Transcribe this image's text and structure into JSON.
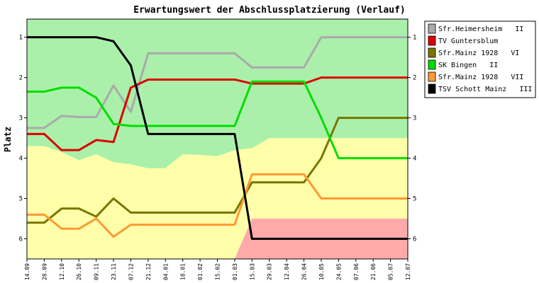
{
  "chart_data": {
    "type": "line",
    "title": "Erwartungswert der Abschlussplatzierung (Verlauf)",
    "ylabel": "Platz",
    "xlabel": "",
    "y_ticks": [
      "1",
      "2",
      "3",
      "4",
      "5",
      "6"
    ],
    "ylim": [
      0.55,
      6.5
    ],
    "y_inverted": true,
    "categories": [
      "14.09",
      "28.09",
      "12.10",
      "26.10",
      "09.11",
      "23.11",
      "07.12",
      "21.12",
      "04.01",
      "18.01",
      "01.02",
      "15.02",
      "01.03",
      "15.03",
      "29.03",
      "12.04",
      "26.04",
      "10.05",
      "24.05",
      "07.06",
      "21.06",
      "05.07",
      "12.07"
    ],
    "legend_position": "right",
    "grid": false,
    "background": {
      "green_lower": [
        3.7,
        3.7,
        3.85,
        4.05,
        3.9,
        4.1,
        4.15,
        4.25,
        4.25,
        3.9,
        3.92,
        3.95,
        3.8,
        3.75,
        3.5,
        3.5,
        3.5,
        3.5,
        3.5,
        3.5,
        3.5,
        3.5,
        3.5
      ],
      "red_upper": [
        6.5,
        6.5,
        6.5,
        6.5,
        6.5,
        6.5,
        6.5,
        6.5,
        6.5,
        6.5,
        6.5,
        6.5,
        6.5,
        5.5,
        5.5,
        5.5,
        5.5,
        5.5,
        5.5,
        5.5,
        5.5,
        5.5,
        5.5
      ],
      "colors": {
        "green": "#aaf0aa",
        "yellow": "#ffffaa",
        "red": "#ffaaaa"
      }
    },
    "series": [
      {
        "name": "Sfr.Heimersheim   II",
        "color": "#aaaaaa",
        "values": [
          3.25,
          3.25,
          2.95,
          2.98,
          2.98,
          2.2,
          2.85,
          1.4,
          1.4,
          1.4,
          1.4,
          1.4,
          1.4,
          1.75,
          1.75,
          1.75,
          1.75,
          1.0,
          1.0,
          1.0,
          1.0,
          1.0,
          1.0
        ]
      },
      {
        "name": "TV Guntersblum",
        "color": "#dd0000",
        "values": [
          3.4,
          3.4,
          3.8,
          3.8,
          3.55,
          3.6,
          2.25,
          2.05,
          2.05,
          2.05,
          2.05,
          2.05,
          2.05,
          2.15,
          2.15,
          2.15,
          2.15,
          2.0,
          2.0,
          2.0,
          2.0,
          2.0,
          2.0
        ]
      },
      {
        "name": "Sfr.Mainz 1928   VI",
        "color": "#777700",
        "values": [
          5.6,
          5.6,
          5.25,
          5.25,
          5.45,
          5.0,
          5.35,
          5.35,
          5.35,
          5.35,
          5.35,
          5.35,
          5.35,
          4.6,
          4.6,
          4.6,
          4.6,
          4.0,
          3.0,
          3.0,
          3.0,
          3.0,
          3.0
        ]
      },
      {
        "name": "SK Bingen   II",
        "color": "#00dd00",
        "values": [
          2.35,
          2.35,
          2.25,
          2.25,
          2.5,
          3.15,
          3.2,
          3.2,
          3.2,
          3.2,
          3.2,
          3.2,
          3.2,
          2.1,
          2.1,
          2.1,
          2.1,
          3.0,
          4.0,
          4.0,
          4.0,
          4.0,
          4.0
        ]
      },
      {
        "name": "Sfr.Mainz 1928   VII",
        "color": "#ff9933",
        "values": [
          5.4,
          5.4,
          5.75,
          5.75,
          5.5,
          5.95,
          5.65,
          5.65,
          5.65,
          5.65,
          5.65,
          5.65,
          5.65,
          4.4,
          4.4,
          4.4,
          4.4,
          5.0,
          5.0,
          5.0,
          5.0,
          5.0,
          5.0
        ]
      },
      {
        "name": "TSV Schott Mainz   III",
        "color": "#000000",
        "values": [
          1.0,
          1.0,
          1.0,
          1.0,
          1.0,
          1.1,
          1.7,
          3.4,
          3.4,
          3.4,
          3.4,
          3.4,
          3.4,
          6.0,
          6.0,
          6.0,
          6.0,
          6.0,
          6.0,
          6.0,
          6.0,
          6.0,
          6.0
        ]
      }
    ]
  }
}
